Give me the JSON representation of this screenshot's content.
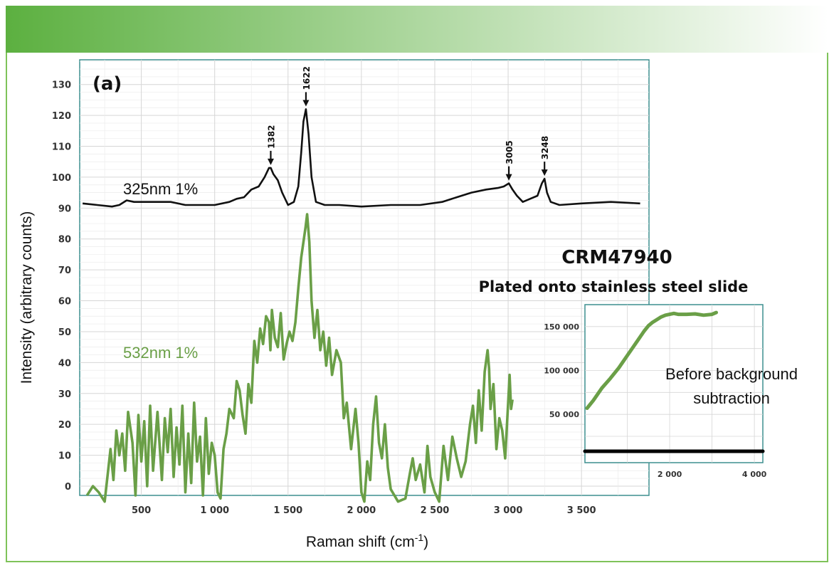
{
  "colors": {
    "banner_start": "#5cb040",
    "banner_end": "#ffffff",
    "frame": "#7fc35a",
    "plot_border": "#3d8f8f",
    "grid": "#d6d6d6",
    "series_325": "#111111",
    "series_532": "#6a9f47"
  },
  "chart_data": [
    {
      "type": "line",
      "panel_label": "(a)",
      "title": "CRM47940",
      "subtitle": "Plated onto stainless steel slide",
      "xlabel": "Raman shift (cm⁻¹)",
      "ylabel": "Intensity (arbitrary counts)",
      "xlim": [
        80,
        3960
      ],
      "ylim": [
        -3,
        138
      ],
      "x_ticks": [
        500,
        1000,
        1500,
        2000,
        2500,
        3000,
        3500
      ],
      "x_tick_labels": [
        "500",
        "1 000",
        "1 500",
        "2 000",
        "2 500",
        "3 000",
        "3 500"
      ],
      "y_ticks": [
        0,
        10,
        20,
        30,
        40,
        50,
        60,
        70,
        80,
        90,
        100,
        110,
        120,
        130
      ],
      "y_tick_labels": [
        "0",
        "10",
        "20",
        "30",
        "40",
        "50",
        "60",
        "70",
        "80",
        "90",
        "100",
        "110",
        "120",
        "130"
      ],
      "grid": true,
      "series": [
        {
          "name": "325nm 1%",
          "color": "#111111",
          "x": [
            100,
            200,
            300,
            350,
            400,
            450,
            500,
            600,
            700,
            800,
            900,
            1000,
            1100,
            1150,
            1200,
            1250,
            1300,
            1340,
            1370,
            1382,
            1400,
            1430,
            1460,
            1500,
            1540,
            1570,
            1590,
            1605,
            1622,
            1640,
            1660,
            1690,
            1750,
            1850,
            2000,
            2200,
            2400,
            2550,
            2650,
            2750,
            2850,
            2930,
            2970,
            3005,
            3030,
            3060,
            3100,
            3150,
            3200,
            3230,
            3248,
            3265,
            3290,
            3350,
            3500,
            3700,
            3900
          ],
          "y": [
            91.5,
            91,
            90.5,
            91,
            92.5,
            92,
            92,
            92,
            92,
            91,
            91,
            91,
            92,
            93,
            93.5,
            96,
            97,
            100,
            103,
            103,
            101,
            99,
            95,
            91,
            92,
            97,
            108,
            118,
            122,
            114,
            100,
            92,
            91,
            91,
            90.5,
            91,
            91,
            92,
            93.5,
            95,
            96,
            96.5,
            97,
            98,
            96,
            94,
            92,
            93,
            94,
            98,
            99.5,
            95,
            92,
            91,
            91.5,
            92,
            91.5
          ]
        },
        {
          "name": "532nm 1%",
          "color": "#6a9f47",
          "x": [
            130,
            170,
            210,
            250,
            290,
            310,
            330,
            350,
            370,
            390,
            410,
            440,
            460,
            480,
            500,
            520,
            540,
            560,
            580,
            610,
            640,
            660,
            680,
            700,
            720,
            740,
            760,
            780,
            800,
            820,
            840,
            860,
            880,
            900,
            920,
            940,
            960,
            980,
            1000,
            1020,
            1040,
            1060,
            1080,
            1100,
            1130,
            1150,
            1170,
            1190,
            1210,
            1230,
            1250,
            1270,
            1290,
            1310,
            1330,
            1350,
            1370,
            1380,
            1390,
            1410,
            1430,
            1450,
            1470,
            1490,
            1510,
            1530,
            1550,
            1570,
            1590,
            1605,
            1620,
            1630,
            1645,
            1660,
            1680,
            1700,
            1720,
            1740,
            1760,
            1780,
            1800,
            1830,
            1860,
            1880,
            1900,
            1930,
            1960,
            1980,
            2000,
            2020,
            2040,
            2060,
            2080,
            2100,
            2120,
            2140,
            2160,
            2180,
            2200,
            2250,
            2300,
            2330,
            2350,
            2370,
            2400,
            2430,
            2450,
            2470,
            2500,
            2530,
            2560,
            2590,
            2620,
            2650,
            2680,
            2710,
            2740,
            2760,
            2780,
            2800,
            2820,
            2840,
            2860,
            2870,
            2880,
            2900,
            2920,
            2940,
            2960,
            2980,
            3000,
            3010,
            3020,
            3030
          ],
          "y": [
            -3,
            0,
            -2,
            -5,
            12,
            2,
            18,
            10,
            17,
            5,
            24,
            14,
            -3,
            23,
            8,
            21,
            0,
            26,
            5,
            24,
            2,
            22,
            11,
            25,
            3,
            19,
            7,
            26,
            -2,
            17,
            1,
            27,
            8,
            16,
            -3,
            22,
            4,
            14,
            10,
            -2,
            -4,
            12,
            17,
            25,
            22,
            34,
            31,
            23,
            17,
            33,
            27,
            47,
            40,
            51,
            46,
            55,
            53,
            44,
            57,
            48,
            45,
            56,
            41,
            46,
            50,
            47,
            53,
            64,
            74,
            79,
            84,
            88,
            79,
            60,
            48,
            57,
            44,
            50,
            39,
            48,
            36,
            44,
            40,
            22,
            27,
            12,
            25,
            14,
            -2,
            -5,
            8,
            2,
            20,
            29,
            14,
            9,
            20,
            6,
            -1,
            -5,
            -4,
            4,
            9,
            2,
            7,
            -2,
            13,
            3,
            -2,
            -5,
            13,
            2,
            16,
            9,
            3,
            8,
            20,
            26,
            14,
            31,
            18,
            37,
            44,
            38,
            25,
            33,
            12,
            22,
            18,
            9,
            27,
            36,
            25,
            28
          ]
        }
      ],
      "annotations": [
        {
          "x": 1382,
          "label": "1382"
        },
        {
          "x": 1622,
          "label": "1622"
        },
        {
          "x": 3005,
          "label": "3005"
        },
        {
          "x": 3248,
          "label": "3248"
        }
      ]
    },
    {
      "type": "line",
      "inset": true,
      "note": "Before background subtraction",
      "xlim": [
        0,
        4200
      ],
      "ylim": [
        -5000,
        175000
      ],
      "x_ticks": [
        2000,
        4000
      ],
      "x_tick_labels": [
        "2 000",
        "4 000"
      ],
      "y_ticks": [
        50000,
        100000,
        150000
      ],
      "y_tick_labels": [
        "50 000",
        "100 000",
        "150 000"
      ],
      "grid": true,
      "series": [
        {
          "name": "",
          "color": "#6a9f47",
          "x": [
            50,
            200,
            400,
            600,
            800,
            1000,
            1200,
            1400,
            1500,
            1600,
            1700,
            1800,
            1900,
            2000,
            2100,
            2200,
            2400,
            2600,
            2800,
            3000,
            3100
          ],
          "y": [
            57000,
            66000,
            80000,
            91000,
            103000,
            117000,
            131000,
            145000,
            151000,
            155000,
            158000,
            161000,
            163000,
            164000,
            165000,
            164000,
            164000,
            164500,
            163000,
            164000,
            166000
          ]
        },
        {
          "name": "",
          "color": "#000000",
          "x": [
            0,
            4200
          ],
          "y": [
            8000,
            8000
          ]
        }
      ]
    }
  ]
}
